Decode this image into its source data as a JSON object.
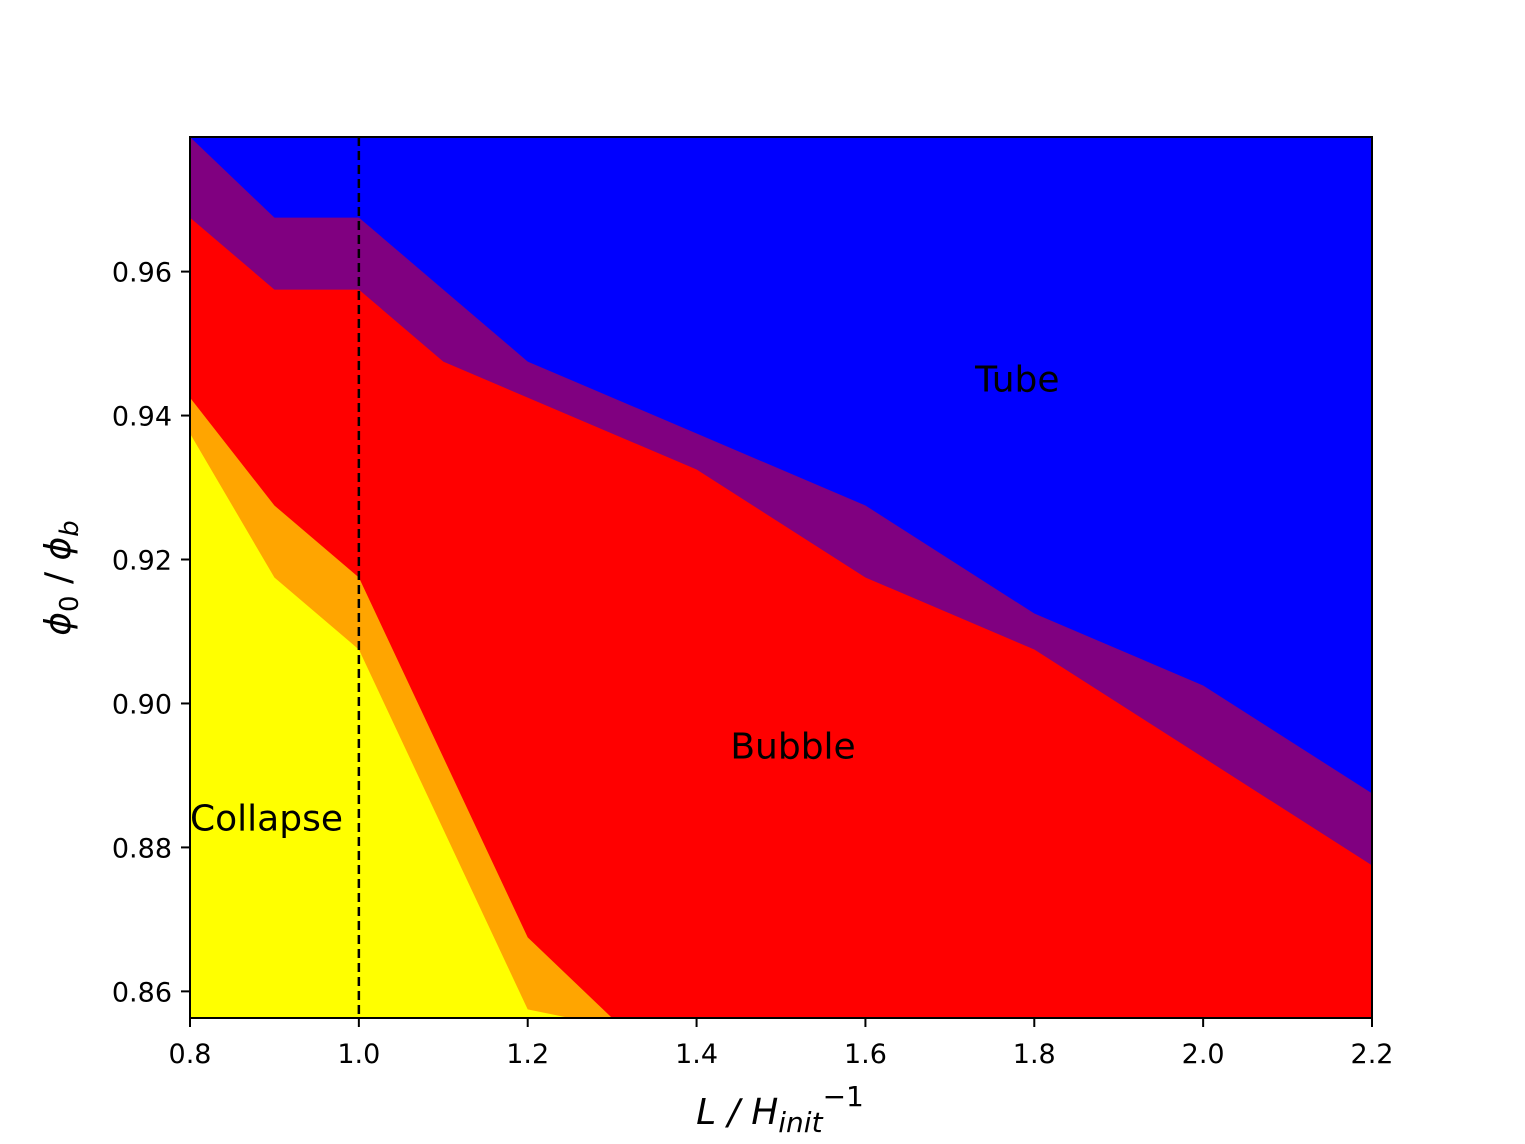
{
  "chart_data": {
    "type": "area",
    "title": "",
    "xlabel": {
      "main": "L / H",
      "sub": "init",
      "sup": "−1"
    },
    "ylabel": {
      "phi0": "ϕ",
      "phi0_sub": "0",
      "sep": " / ",
      "phib": "ϕ",
      "phib_sub": "b"
    },
    "xlim": [
      0.8,
      2.2
    ],
    "ylim": [
      0.8563,
      0.9787
    ],
    "xticks": [
      0.8,
      1.0,
      1.2,
      1.4,
      1.6,
      1.8,
      2.0,
      2.2
    ],
    "xtick_labels": [
      "0.8",
      "1.0",
      "1.2",
      "1.4",
      "1.6",
      "1.8",
      "2.0",
      "2.2"
    ],
    "yticks": [
      0.86,
      0.88,
      0.9,
      0.92,
      0.94,
      0.96
    ],
    "ytick_labels": [
      "0.86",
      "0.88",
      "0.90",
      "0.92",
      "0.94",
      "0.96"
    ],
    "grid": false,
    "colors": {
      "collapse": "#ffff00",
      "transition_collapse_bubble": "#ffa500",
      "bubble": "#ff0000",
      "transition_bubble_tube": "#800080",
      "tube": "#0000ff"
    },
    "boundaries": {
      "yellow_top": {
        "x": [
          0.8,
          0.9,
          1.0,
          1.1,
          1.2,
          1.25
        ],
        "y": [
          0.9375,
          0.9175,
          0.9075,
          0.8825,
          0.8575,
          0.8563
        ]
      },
      "orange_top": {
        "x": [
          0.8,
          0.9,
          1.0,
          1.1,
          1.2,
          1.3
        ],
        "y": [
          0.9425,
          0.9275,
          0.9175,
          0.8925,
          0.8675,
          0.8563
        ]
      },
      "red_top": {
        "x": [
          0.8,
          0.9,
          1.0,
          1.1,
          1.2,
          1.4,
          1.6,
          1.8,
          2.0,
          2.2
        ],
        "y": [
          0.9675,
          0.9575,
          0.9575,
          0.9475,
          0.9425,
          0.9325,
          0.9175,
          0.9075,
          0.8925,
          0.8775
        ]
      },
      "purple_top": {
        "x": [
          0.8,
          0.9,
          1.0,
          1.1,
          1.2,
          1.4,
          1.6,
          1.8,
          2.0,
          2.2
        ],
        "y": [
          0.9787,
          0.9675,
          0.9675,
          0.9575,
          0.9475,
          0.9375,
          0.9275,
          0.9125,
          0.9025,
          0.8875
        ]
      }
    },
    "vline": {
      "x": 1.0,
      "style": "dashed",
      "color": "#000000"
    },
    "annotations": [
      {
        "text": "Tube",
        "x": 1.73,
        "y": 0.945
      },
      {
        "text": "Bubble",
        "x": 1.44,
        "y": 0.894
      },
      {
        "text": "Collapse",
        "x": 0.8,
        "y": 0.884
      }
    ]
  }
}
